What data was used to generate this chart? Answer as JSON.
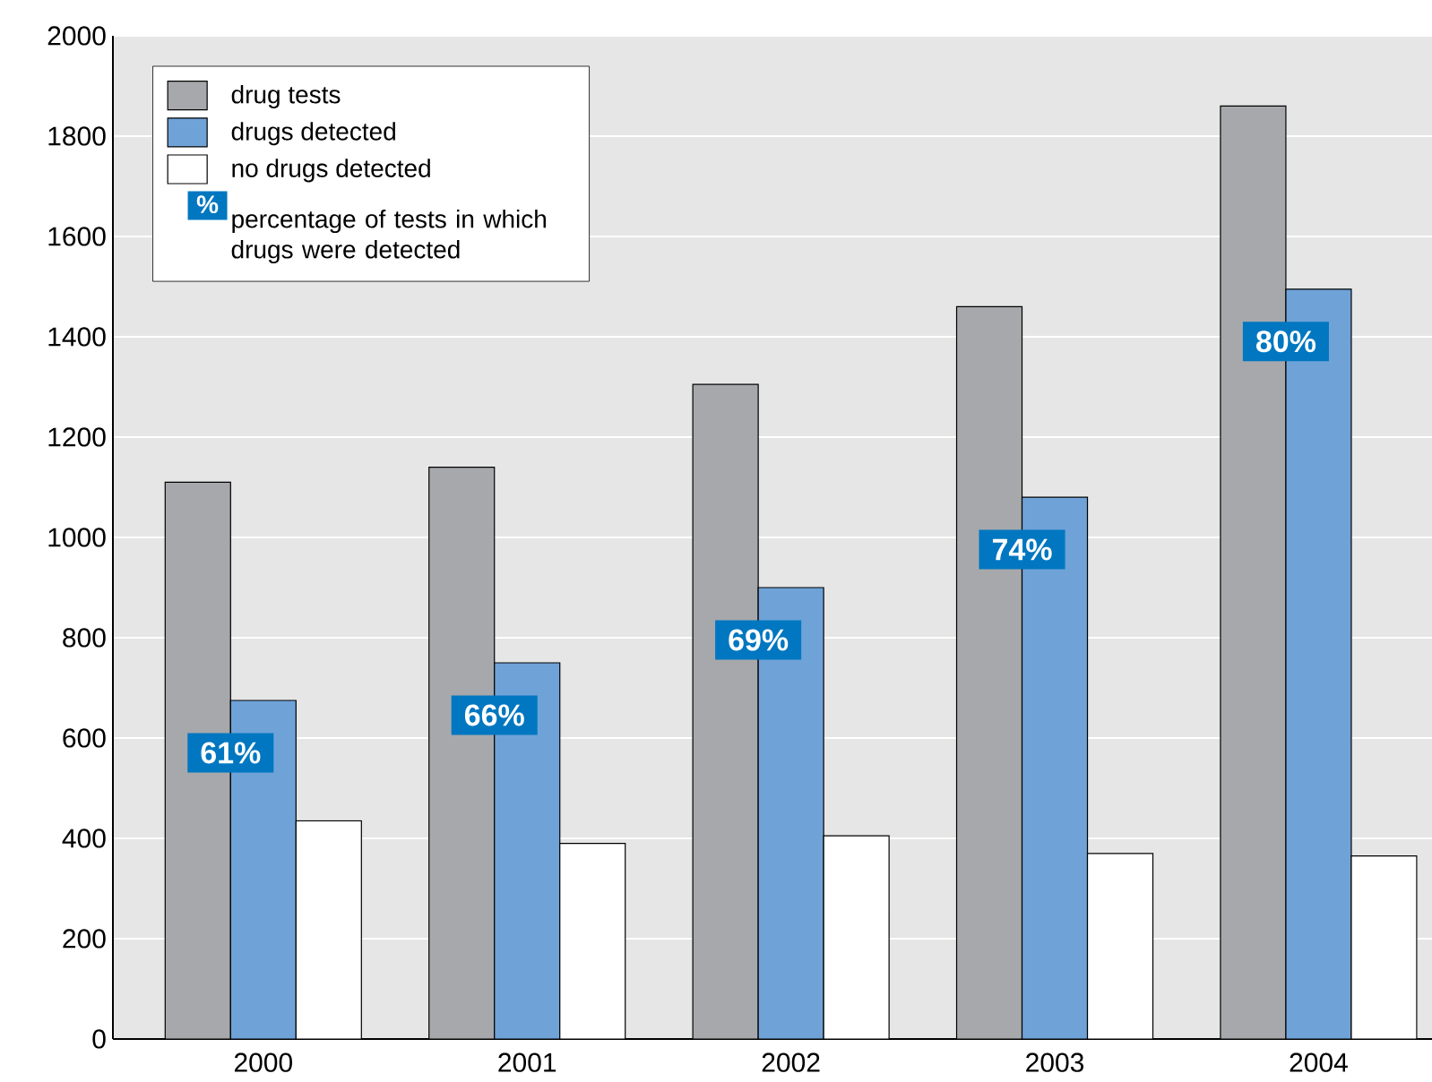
{
  "chart_data": {
    "type": "bar",
    "categories": [
      "2000",
      "2001",
      "2002",
      "2003",
      "2004"
    ],
    "series": [
      {
        "name": "drug tests",
        "color": "#a7a8ac",
        "values": [
          1110,
          1140,
          1305,
          1460,
          1860
        ]
      },
      {
        "name": "drugs detected",
        "color": "#6fa3d8",
        "values": [
          675,
          750,
          900,
          1080,
          1495
        ]
      },
      {
        "name": "no drugs detected",
        "color": "#ffffff",
        "values": [
          435,
          390,
          405,
          370,
          365
        ]
      }
    ],
    "ylim": [
      0,
      2000
    ],
    "yticks": [
      0,
      200,
      400,
      600,
      800,
      1000,
      1200,
      1400,
      1600,
      1800,
      2000
    ],
    "grid": "y",
    "legend": "top left",
    "annotations": [
      "%",
      "percentage of tests in which drugs were detected",
      "61%",
      "66%",
      "69%",
      "74%",
      "80%"
    ]
  }
}
